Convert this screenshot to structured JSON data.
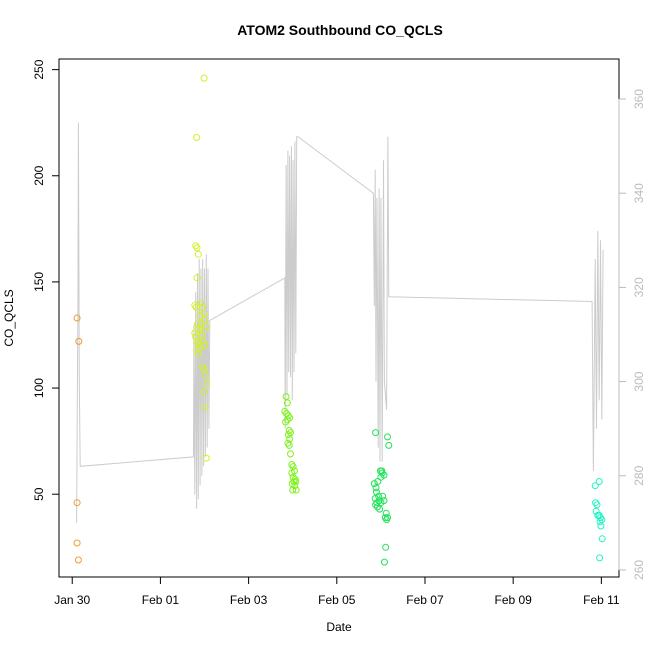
{
  "chart_data": {
    "type": "scatter",
    "title": "ATOM2 Southbound CO_QCLS",
    "xlabel": "Date",
    "ylabel": "CO_QCLS",
    "x_unit": "days since Jan 30",
    "xlim": [
      -0.3,
      12.4
    ],
    "xticks": [
      {
        "value": 0,
        "label": "Jan 30"
      },
      {
        "value": 2,
        "label": "Feb 01"
      },
      {
        "value": 4,
        "label": "Feb 03"
      },
      {
        "value": 6,
        "label": "Feb 05"
      },
      {
        "value": 8,
        "label": "Feb 07"
      },
      {
        "value": 10,
        "label": "Feb 09"
      },
      {
        "value": 12,
        "label": "Feb 11"
      }
    ],
    "ylim": [
      11,
      255
    ],
    "yticks": [
      50,
      100,
      150,
      200,
      250
    ],
    "y2lim": [
      258.5,
      368.5
    ],
    "y2ticks": [
      260,
      280,
      300,
      320,
      340,
      360
    ],
    "y2_color": "#bbbbbb",
    "line_color": "#cccccc",
    "grid": false,
    "legend": "none",
    "series": [
      {
        "color": "#f39a2e",
        "points": [
          [
            0.11,
            133
          ],
          [
            0.15,
            122
          ],
          [
            0.11,
            46
          ],
          [
            0.11,
            27
          ],
          [
            0.14,
            19
          ]
        ]
      },
      {
        "color": "#d5ef2a",
        "points": [
          [
            2.82,
            218
          ],
          [
            2.8,
            167
          ],
          [
            2.83,
            166
          ],
          [
            2.86,
            163
          ],
          [
            2.83,
            152
          ],
          [
            2.78,
            139
          ],
          [
            2.81,
            138
          ],
          [
            2.84,
            130
          ],
          [
            2.86,
            128
          ],
          [
            2.78,
            126
          ],
          [
            2.8,
            124
          ],
          [
            2.83,
            122
          ],
          [
            2.87,
            121
          ],
          [
            2.9,
            119
          ],
          [
            2.82,
            118
          ],
          [
            2.86,
            116
          ],
          [
            2.92,
            140
          ],
          [
            2.95,
            138
          ],
          [
            2.98,
            135
          ],
          [
            3.0,
            132
          ],
          [
            3.03,
            129
          ],
          [
            2.94,
            125
          ],
          [
            2.97,
            122
          ],
          [
            3.0,
            120
          ],
          [
            2.91,
            127
          ],
          [
            2.96,
            110
          ],
          [
            2.99,
            109
          ],
          [
            3.02,
            106
          ],
          [
            3.05,
            102
          ],
          [
            2.98,
            98
          ],
          [
            3.01,
            91
          ],
          [
            3.04,
            67
          ],
          [
            2.99,
            246
          ],
          [
            2.93,
            130
          ],
          [
            2.9,
            134
          ]
        ]
      },
      {
        "color": "#7ef21c",
        "points": [
          [
            4.85,
            96
          ],
          [
            4.88,
            93
          ],
          [
            4.82,
            89
          ],
          [
            4.86,
            88
          ],
          [
            4.9,
            87
          ],
          [
            4.93,
            86
          ],
          [
            4.84,
            84
          ],
          [
            4.88,
            85
          ],
          [
            4.92,
            80
          ],
          [
            4.95,
            79
          ],
          [
            4.9,
            78
          ],
          [
            4.93,
            76
          ],
          [
            4.89,
            74
          ],
          [
            4.92,
            73
          ],
          [
            4.95,
            69
          ],
          [
            4.98,
            64
          ],
          [
            5.01,
            63
          ],
          [
            5.04,
            61
          ],
          [
            4.98,
            60
          ],
          [
            5.01,
            58
          ],
          [
            5.06,
            57
          ],
          [
            5.03,
            56
          ],
          [
            5.07,
            56
          ],
          [
            4.99,
            55
          ],
          [
            5.05,
            54
          ],
          [
            5.08,
            52
          ],
          [
            5.0,
            52
          ]
        ]
      },
      {
        "color": "#22e35a",
        "points": [
          [
            6.88,
            79
          ],
          [
            7.15,
            77
          ],
          [
            7.18,
            73
          ],
          [
            6.85,
            55
          ],
          [
            6.89,
            53
          ],
          [
            6.93,
            56
          ],
          [
            6.99,
            61
          ],
          [
            7.03,
            60
          ],
          [
            7.07,
            59
          ],
          [
            7.0,
            58
          ],
          [
            6.9,
            51
          ],
          [
            6.95,
            49
          ],
          [
            6.87,
            48
          ],
          [
            6.91,
            46
          ],
          [
            6.96,
            47
          ],
          [
            7.0,
            46
          ],
          [
            7.04,
            49
          ],
          [
            7.07,
            47
          ],
          [
            6.88,
            45
          ],
          [
            6.92,
            44
          ],
          [
            6.97,
            43
          ],
          [
            7.12,
            41
          ],
          [
            7.15,
            39
          ],
          [
            7.1,
            39
          ],
          [
            7.13,
            38
          ],
          [
            7.11,
            25
          ],
          [
            7.08,
            18
          ],
          [
            7.02,
            61
          ]
        ]
      },
      {
        "color": "#1ff5c2",
        "points": [
          [
            11.86,
            54
          ],
          [
            11.95,
            56
          ],
          [
            11.87,
            46
          ],
          [
            11.9,
            45
          ],
          [
            11.88,
            42
          ],
          [
            11.92,
            40
          ],
          [
            11.95,
            40
          ],
          [
            11.98,
            39
          ],
          [
            12.01,
            38
          ],
          [
            11.97,
            37
          ],
          [
            11.99,
            35
          ],
          [
            12.02,
            29
          ],
          [
            11.96,
            20
          ]
        ]
      }
    ],
    "line_y2": [
      [
        0.1,
        270
      ],
      [
        0.13,
        320
      ],
      [
        0.14,
        355
      ],
      [
        0.16,
        300
      ],
      [
        0.18,
        282
      ],
      [
        2.75,
        284
      ],
      [
        2.76,
        312
      ],
      [
        2.78,
        276
      ],
      [
        2.8,
        319
      ],
      [
        2.82,
        273
      ],
      [
        2.84,
        323
      ],
      [
        2.86,
        275
      ],
      [
        2.88,
        326
      ],
      [
        2.9,
        278
      ],
      [
        2.92,
        324
      ],
      [
        2.94,
        280
      ],
      [
        2.96,
        326
      ],
      [
        2.98,
        282
      ],
      [
        3.0,
        324
      ],
      [
        3.02,
        284
      ],
      [
        3.04,
        327
      ],
      [
        3.06,
        286
      ],
      [
        3.08,
        324
      ],
      [
        3.1,
        290
      ],
      [
        3.12,
        313
      ],
      [
        4.82,
        322
      ],
      [
        4.83,
        290
      ],
      [
        4.85,
        346
      ],
      [
        4.87,
        297
      ],
      [
        4.89,
        349
      ],
      [
        4.91,
        302
      ],
      [
        4.93,
        348
      ],
      [
        4.95,
        301
      ],
      [
        4.97,
        350
      ],
      [
        4.99,
        296
      ],
      [
        5.01,
        347
      ],
      [
        5.03,
        302
      ],
      [
        5.05,
        351
      ],
      [
        5.07,
        306
      ],
      [
        5.09,
        352
      ],
      [
        5.12,
        352
      ],
      [
        6.83,
        340
      ],
      [
        6.85,
        316
      ],
      [
        6.87,
        345
      ],
      [
        6.89,
        300
      ],
      [
        6.91,
        339
      ],
      [
        6.94,
        286
      ],
      [
        6.96,
        341
      ],
      [
        6.98,
        283
      ],
      [
        7.0,
        339
      ],
      [
        7.03,
        283
      ],
      [
        7.06,
        347
      ],
      [
        7.08,
        300
      ],
      [
        7.13,
        294
      ],
      [
        7.16,
        352
      ],
      [
        7.18,
        318
      ],
      [
        11.79,
        317
      ],
      [
        11.82,
        281
      ],
      [
        11.86,
        326
      ],
      [
        11.89,
        290
      ],
      [
        11.92,
        332
      ],
      [
        11.95,
        296
      ],
      [
        11.98,
        330
      ],
      [
        12.01,
        292
      ],
      [
        12.04,
        328
      ]
    ]
  }
}
